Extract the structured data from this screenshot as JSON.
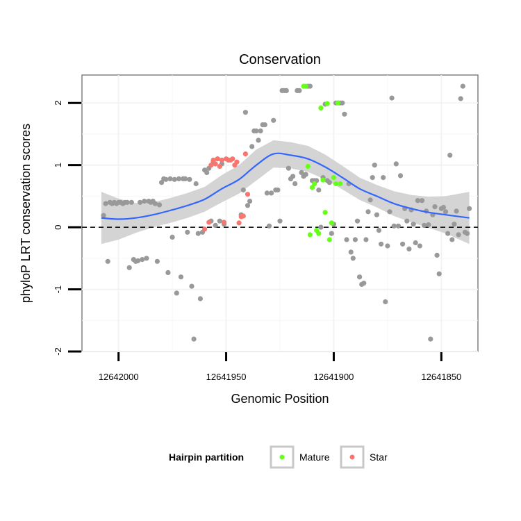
{
  "chart_data": {
    "type": "scatter",
    "title": "Conservation",
    "xlabel": "Genomic Position",
    "ylabel": "phyloP LRT conservation scores",
    "x_reversed": true,
    "xlim": [
      12642017,
      12641833
    ],
    "ylim": [
      -2.0,
      2.45
    ],
    "xticks": [
      12642000,
      12641950,
      12641900,
      12641850
    ],
    "xtick_labels": [
      "12642000",
      "12641950",
      "12641900",
      "12641850"
    ],
    "yticks": [
      -2,
      -1,
      0,
      1,
      2
    ],
    "ytick_labels": [
      "-2",
      "-1",
      "0",
      "1",
      "2"
    ],
    "grid": true,
    "reference_line": {
      "y": 0,
      "style": "dashed"
    },
    "legend": {
      "title": "Hairpin partition",
      "position": "bottom",
      "entries": [
        {
          "name": "Mature",
          "color": "#66ff1a"
        },
        {
          "name": "Star",
          "color": "#f8766d"
        }
      ]
    },
    "colors": {
      "other": "#999999",
      "Mature": "#66ff1a",
      "Star": "#f8766d",
      "smooth_line": "#3366ff",
      "smooth_band": "#d4d4d4"
    },
    "series": [
      {
        "group": "other",
        "points": [
          [
            12642007,
            0.19
          ],
          [
            12642006,
            0.38
          ],
          [
            12642005,
            -0.55
          ],
          [
            12642004,
            0.4
          ],
          [
            12642003,
            0.38
          ],
          [
            12642002,
            0.4
          ],
          [
            12642001,
            0.38
          ],
          [
            12642000,
            0.4
          ],
          [
            12641999,
            0.4
          ],
          [
            12641998,
            0.38
          ],
          [
            12641997,
            0.4
          ],
          [
            12641996,
            0.4
          ],
          [
            12641995,
            -0.65
          ],
          [
            12641994,
            0.4
          ],
          [
            12641993,
            -0.52
          ],
          [
            12641992,
            -0.55
          ],
          [
            12641991,
            -0.54
          ],
          [
            12641990,
            0.4
          ],
          [
            12641989,
            -0.52
          ],
          [
            12641988,
            0.42
          ],
          [
            12641987,
            -0.5
          ],
          [
            12641986,
            0.42
          ],
          [
            12641985,
            0.4
          ],
          [
            12641984,
            0.42
          ],
          [
            12641983,
            0.38
          ],
          [
            12641982,
            -0.55
          ],
          [
            12641981,
            0.36
          ],
          [
            12641980,
            0.72
          ],
          [
            12641979,
            0.78
          ],
          [
            12641978,
            0.77
          ],
          [
            12641977,
            -0.73
          ],
          [
            12641976,
            0.78
          ],
          [
            12641975,
            -0.16
          ],
          [
            12641974,
            0.77
          ],
          [
            12641973,
            -1.06
          ],
          [
            12641972,
            0.78
          ],
          [
            12641971,
            -0.8
          ],
          [
            12641970,
            0.78
          ],
          [
            12641969,
            0.78
          ],
          [
            12641968,
            -0.08
          ],
          [
            12641967,
            0.77
          ],
          [
            12641966,
            -0.95
          ],
          [
            12641965,
            -1.8
          ],
          [
            12641964,
            0.7
          ],
          [
            12641963,
            -0.1
          ],
          [
            12641962,
            -1.15
          ],
          [
            12641961,
            -0.08
          ],
          [
            12641960,
            0.92
          ],
          [
            12641959,
            0.88
          ],
          [
            12641958,
            0.95
          ],
          [
            12641957,
            0.1
          ],
          [
            12641956,
            1.05
          ],
          [
            12641955,
            0.03
          ],
          [
            12641954,
            1.1
          ],
          [
            12641953,
            0.1
          ],
          [
            12641952,
            1.02
          ],
          [
            12641951,
            0.05
          ],
          [
            12641943,
            0.2
          ],
          [
            12641942,
            0.6
          ],
          [
            12641941,
            1.85
          ],
          [
            12641940,
            0.35
          ],
          [
            12641939,
            0.42
          ],
          [
            12641938,
            1.3
          ],
          [
            12641937,
            1.55
          ],
          [
            12641936,
            1.55
          ],
          [
            12641935,
            1.4
          ],
          [
            12641934,
            1.55
          ],
          [
            12641933,
            1.65
          ],
          [
            12641932,
            1.65
          ],
          [
            12641931,
            0.55
          ],
          [
            12641930,
            0.02
          ],
          [
            12641929,
            0.55
          ],
          [
            12641928,
            1.72
          ],
          [
            12641927,
            0.6
          ],
          [
            12641926,
            0.6
          ],
          [
            12641925,
            0.1
          ],
          [
            12641924,
            2.2
          ],
          [
            12641923,
            2.2
          ],
          [
            12641922,
            2.2
          ],
          [
            12641921,
            0.95
          ],
          [
            12641920,
            0.78
          ],
          [
            12641919,
            0.82
          ],
          [
            12641918,
            0.7
          ],
          [
            12641917,
            2.2
          ],
          [
            12641916,
            2.2
          ],
          [
            12641915,
            0.88
          ],
          [
            12641914,
            0.82
          ],
          [
            12641913,
            0.85
          ],
          [
            12641912,
            2.27
          ],
          [
            12641911,
            2.27
          ],
          [
            12641910,
            0.75
          ],
          [
            12641909,
            0.75
          ],
          [
            12641908,
            0.75
          ],
          [
            12641907,
            0.6
          ],
          [
            12641906,
            0.0
          ],
          [
            12641905,
            0.8
          ],
          [
            12641904,
            1.98
          ],
          [
            12641903,
            0.75
          ],
          [
            12641902,
            0.72
          ],
          [
            12641901,
            -0.1
          ],
          [
            12641900,
            0.05
          ],
          [
            12641899,
            2.0
          ],
          [
            12641898,
            2.0
          ],
          [
            12641897,
            2.0
          ],
          [
            12641896,
            2.0
          ],
          [
            12641895,
            1.82
          ],
          [
            12641894,
            -0.2
          ],
          [
            12641893,
            0.7
          ],
          [
            12641892,
            -0.4
          ],
          [
            12641891,
            -0.5
          ],
          [
            12641890,
            -0.2
          ],
          [
            12641889,
            0.1
          ],
          [
            12641888,
            -0.8
          ],
          [
            12641887,
            -0.92
          ],
          [
            12641886,
            -0.9
          ],
          [
            12641885,
            -0.2
          ],
          [
            12641884,
            0.25
          ],
          [
            12641883,
            0.44
          ],
          [
            12641882,
            0.8
          ],
          [
            12641881,
            1.0
          ],
          [
            12641880,
            0.2
          ],
          [
            12641879,
            -0.05
          ],
          [
            12641878,
            -0.27
          ],
          [
            12641877,
            0.8
          ],
          [
            12641876,
            -1.2
          ],
          [
            12641875,
            -0.3
          ],
          [
            12641874,
            0.25
          ],
          [
            12641873,
            2.08
          ],
          [
            12641872,
            0.02
          ],
          [
            12641871,
            1.02
          ],
          [
            12641870,
            0.02
          ],
          [
            12641869,
            0.83
          ],
          [
            12641868,
            -0.27
          ],
          [
            12641867,
            0.3
          ],
          [
            12641866,
            0.1
          ],
          [
            12641865,
            -0.35
          ],
          [
            12641864,
            0.28
          ],
          [
            12641863,
            0.05
          ],
          [
            12641862,
            -0.25
          ],
          [
            12641861,
            0.43
          ],
          [
            12641860,
            -0.3
          ],
          [
            12641859,
            0.43
          ],
          [
            12641858,
            0.03
          ],
          [
            12641857,
            0.26
          ],
          [
            12641856,
            0.04
          ],
          [
            12641855,
            -1.8
          ],
          [
            12641854,
            0.2
          ],
          [
            12641853,
            0.33
          ],
          [
            12641852,
            -0.45
          ],
          [
            12641851,
            -0.75
          ],
          [
            12641850,
            0.3
          ],
          [
            12641849,
            0.32
          ],
          [
            12641848,
            0.25
          ],
          [
            12641847,
            -0.1
          ],
          [
            12641846,
            1.16
          ],
          [
            12641845,
            -0.2
          ],
          [
            12641844,
            0.05
          ],
          [
            12641843,
            0.26
          ],
          [
            12641842,
            -0.12
          ],
          [
            12641841,
            2.07
          ],
          [
            12641840,
            2.27
          ],
          [
            12641839,
            -0.08
          ],
          [
            12641838,
            -0.1
          ],
          [
            12641837,
            0.3
          ]
        ]
      },
      {
        "group": "Mature",
        "points": [
          [
            12641914,
            2.27
          ],
          [
            12641913,
            2.27
          ],
          [
            12641912,
            0.98
          ],
          [
            12641911,
            -0.12
          ],
          [
            12641910,
            0.64
          ],
          [
            12641909,
            0.7
          ],
          [
            12641908,
            -0.05
          ],
          [
            12641907,
            -0.1
          ],
          [
            12641906,
            1.92
          ],
          [
            12641905,
            0.76
          ],
          [
            12641904,
            0.24
          ],
          [
            12641903,
            1.99
          ],
          [
            12641902,
            -0.2
          ],
          [
            12641901,
            0.07
          ],
          [
            12641900,
            0.8
          ],
          [
            12641899,
            0.7
          ],
          [
            12641898,
            2.0
          ],
          [
            12641897,
            0.7
          ]
        ]
      },
      {
        "group": "Star",
        "points": [
          [
            12641960,
            -0.03
          ],
          [
            12641958,
            0.08
          ],
          [
            12641957,
            1.0
          ],
          [
            12641956,
            1.08
          ],
          [
            12641955,
            1.02
          ],
          [
            12641954,
            1.1
          ],
          [
            12641953,
            0.98
          ],
          [
            12641952,
            1.08
          ],
          [
            12641951,
            0.08
          ],
          [
            12641950,
            1.1
          ],
          [
            12641949,
            1.08
          ],
          [
            12641948,
            1.08
          ],
          [
            12641947,
            1.1
          ],
          [
            12641946,
            1.0
          ],
          [
            12641945,
            1.05
          ],
          [
            12641944,
            0.07
          ],
          [
            12641943,
            0.17
          ],
          [
            12641942,
            0.18
          ],
          [
            12641941,
            1.18
          ],
          [
            12641940,
            0.53
          ]
        ]
      }
    ],
    "smooth": {
      "method": "loess",
      "x": [
        12642008,
        12642000,
        12641992,
        12641984,
        12641976,
        12641968,
        12641960,
        12641952,
        12641944,
        12641936,
        12641928,
        12641920,
        12641912,
        12641904,
        12641896,
        12641888,
        12641880,
        12641872,
        12641864,
        12641856,
        12641848,
        12641837
      ],
      "y": [
        0.15,
        0.13,
        0.15,
        0.2,
        0.27,
        0.35,
        0.45,
        0.62,
        0.77,
        1.0,
        1.18,
        1.16,
        1.1,
        0.97,
        0.8,
        0.62,
        0.5,
        0.38,
        0.3,
        0.24,
        0.2,
        0.15
      ],
      "band": [
        0.42,
        0.33,
        0.24,
        0.2,
        0.2,
        0.2,
        0.2,
        0.22,
        0.23,
        0.25,
        0.22,
        0.21,
        0.21,
        0.2,
        0.19,
        0.18,
        0.18,
        0.2,
        0.22,
        0.25,
        0.3,
        0.42
      ]
    }
  }
}
